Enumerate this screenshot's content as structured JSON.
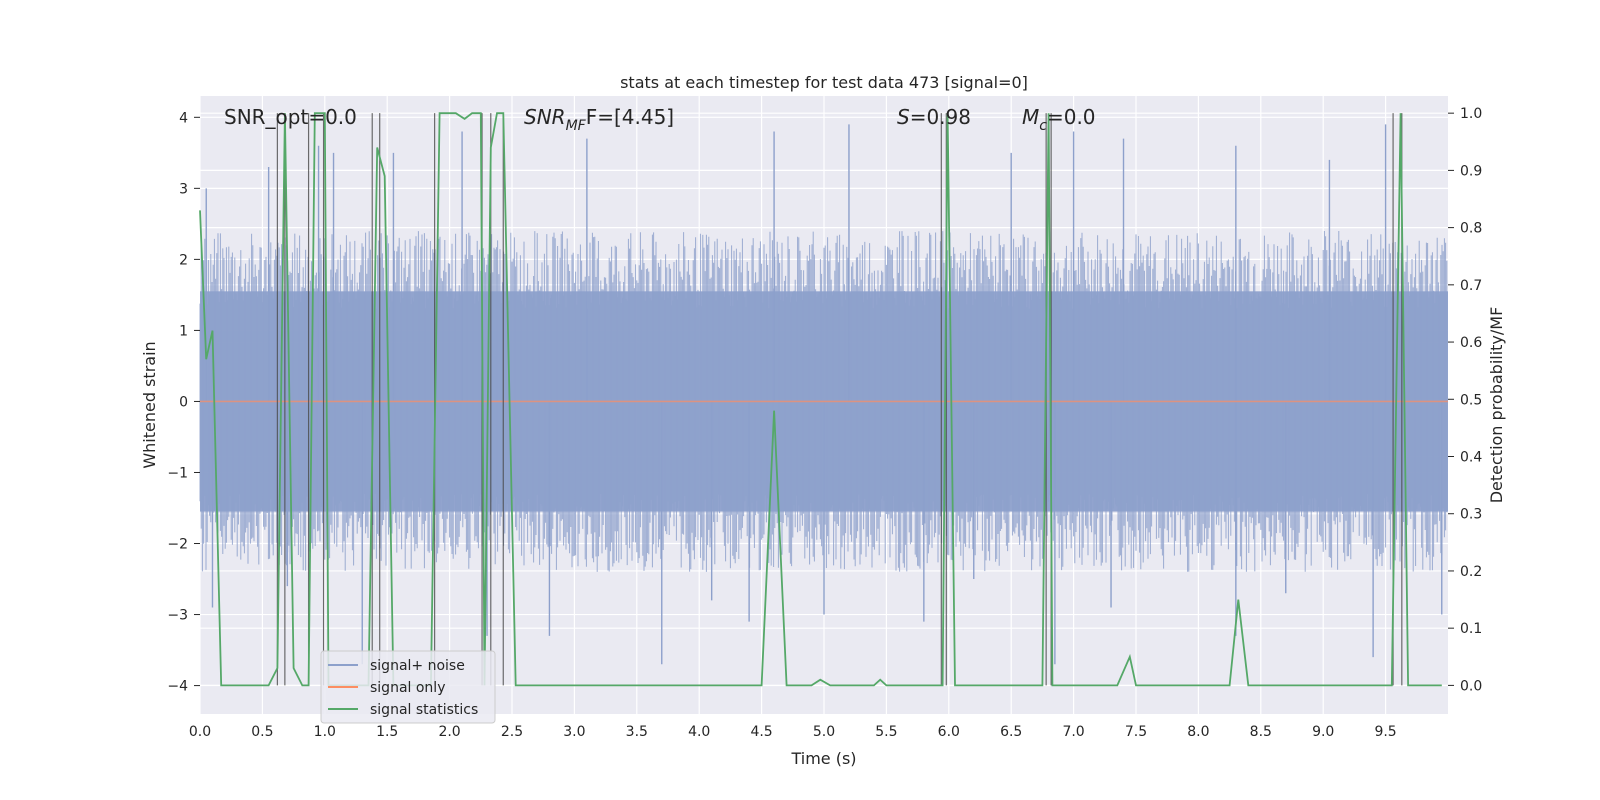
{
  "chart_data": {
    "type": "line",
    "title": "stats at each timestep for test data 473 [signal=0]",
    "xlabel": "Time (s)",
    "ylabel": "Whitened strain",
    "y2label": "Detection probability/MF",
    "xlim": [
      0.0,
      10.0
    ],
    "ylim": [
      -4.4,
      4.3
    ],
    "y2lim": [
      -0.05,
      1.03
    ],
    "grid": true,
    "legend_position": "lower-left",
    "x_ticks": [
      "0.0",
      "0.5",
      "1.0",
      "1.5",
      "2.0",
      "2.5",
      "3.0",
      "3.5",
      "4.0",
      "4.5",
      "5.0",
      "5.5",
      "6.0",
      "6.5",
      "7.0",
      "7.5",
      "8.0",
      "8.5",
      "9.0",
      "9.5"
    ],
    "y_ticks": [
      "4",
      "3",
      "2",
      "1",
      "0",
      "−1",
      "−2",
      "−3",
      "−4"
    ],
    "y2_ticks": [
      "1.0",
      "0.9",
      "0.8",
      "0.7",
      "0.6",
      "0.5",
      "0.4",
      "0.3",
      "0.2",
      "0.1",
      "0.0"
    ],
    "annotations": {
      "snr_opt": "SNR_opt=0.0",
      "snr_mf_sym": "SNR",
      "snr_mf_sub": "MF",
      "snr_mf_val": "F=[4.45]",
      "s_sym": "S",
      "s_val": "=0.98",
      "mc_sym": "M",
      "mc_sub": "c",
      "mc_val": "=0.0"
    },
    "series": [
      {
        "name": "signal+ noise",
        "color": "#8da0cb",
        "description_of_data": "dense whitened noise, roughly |y|<1.6 with spikes to about ±3.7",
        "spikes": [
          {
            "x": 0.05,
            "y": 3.0
          },
          {
            "x": 0.55,
            "y": 3.3
          },
          {
            "x": 0.95,
            "y": 3.6
          },
          {
            "x": 1.07,
            "y": 3.5
          },
          {
            "x": 1.55,
            "y": 3.5
          },
          {
            "x": 2.1,
            "y": 3.8
          },
          {
            "x": 3.1,
            "y": 3.7
          },
          {
            "x": 4.6,
            "y": 3.8
          },
          {
            "x": 5.2,
            "y": 3.9
          },
          {
            "x": 6.5,
            "y": 3.5
          },
          {
            "x": 7.0,
            "y": 3.8
          },
          {
            "x": 7.4,
            "y": 3.7
          },
          {
            "x": 8.3,
            "y": 3.6
          },
          {
            "x": 9.05,
            "y": 3.4
          },
          {
            "x": 9.5,
            "y": 3.9
          },
          {
            "x": 0.1,
            "y": -2.9
          },
          {
            "x": 0.7,
            "y": -2.6
          },
          {
            "x": 1.3,
            "y": -3.7
          },
          {
            "x": 2.3,
            "y": -3.3
          },
          {
            "x": 2.8,
            "y": -3.3
          },
          {
            "x": 3.7,
            "y": -3.7
          },
          {
            "x": 4.1,
            "y": -2.8
          },
          {
            "x": 4.4,
            "y": -3.1
          },
          {
            "x": 5.0,
            "y": -3.0
          },
          {
            "x": 5.8,
            "y": -3.1
          },
          {
            "x": 6.2,
            "y": -2.5
          },
          {
            "x": 6.85,
            "y": -3.7
          },
          {
            "x": 7.3,
            "y": -2.9
          },
          {
            "x": 8.3,
            "y": -3.3
          },
          {
            "x": 8.7,
            "y": -2.7
          },
          {
            "x": 9.4,
            "y": -3.6
          },
          {
            "x": 9.95,
            "y": -3.0
          }
        ]
      },
      {
        "name": "signal only",
        "color": "#fc8d62",
        "x": [
          0.0,
          10.0
        ],
        "y": [
          0.0,
          0.0
        ]
      },
      {
        "name": "signal statistics",
        "color": "#55a868",
        "axis": "right",
        "x": [
          0.0,
          0.05,
          0.1,
          0.17,
          0.22,
          0.55,
          0.62,
          0.68,
          0.75,
          0.82,
          0.87,
          0.92,
          0.93,
          1.0,
          1.03,
          1.1,
          1.2,
          1.35,
          1.42,
          1.48,
          1.55,
          1.85,
          1.92,
          1.97,
          2.05,
          2.12,
          2.18,
          2.25,
          2.28,
          2.33,
          2.38,
          2.43,
          2.53,
          4.5,
          4.6,
          4.7,
          4.9,
          4.97,
          5.05,
          5.4,
          5.45,
          5.5,
          5.65,
          5.72,
          5.9,
          5.95,
          5.99,
          6.05,
          6.75,
          6.8,
          6.83,
          6.88,
          7.35,
          7.45,
          7.5,
          8.25,
          8.32,
          8.4,
          9.55,
          9.62,
          9.68,
          9.95
        ],
        "y": [
          0.83,
          0.57,
          0.62,
          0.0,
          0.0,
          0.0,
          0.03,
          1.0,
          0.03,
          0.0,
          0.0,
          1.0,
          1.0,
          1.0,
          0.0,
          0.0,
          0.0,
          0.0,
          0.94,
          0.89,
          0.0,
          0.0,
          1.0,
          1.0,
          1.0,
          0.99,
          1.0,
          1.0,
          0.0,
          0.94,
          1.0,
          1.0,
          0.0,
          0.0,
          0.48,
          0.0,
          0.0,
          0.01,
          0.0,
          0.0,
          0.01,
          0.0,
          0.0,
          0.0,
          0.0,
          0.0,
          1.0,
          0.0,
          0.0,
          1.0,
          0.0,
          0.0,
          0.0,
          0.05,
          0.0,
          0.0,
          0.15,
          0.0,
          0.0,
          1.0,
          0.0,
          0.0
        ]
      }
    ],
    "vertical_markers": [
      0.62,
      0.68,
      0.87,
      0.99,
      1.38,
      1.44,
      1.88,
      2.26,
      2.33,
      2.43,
      5.94,
      5.98,
      6.78,
      6.82,
      9.56,
      9.63
    ]
  }
}
